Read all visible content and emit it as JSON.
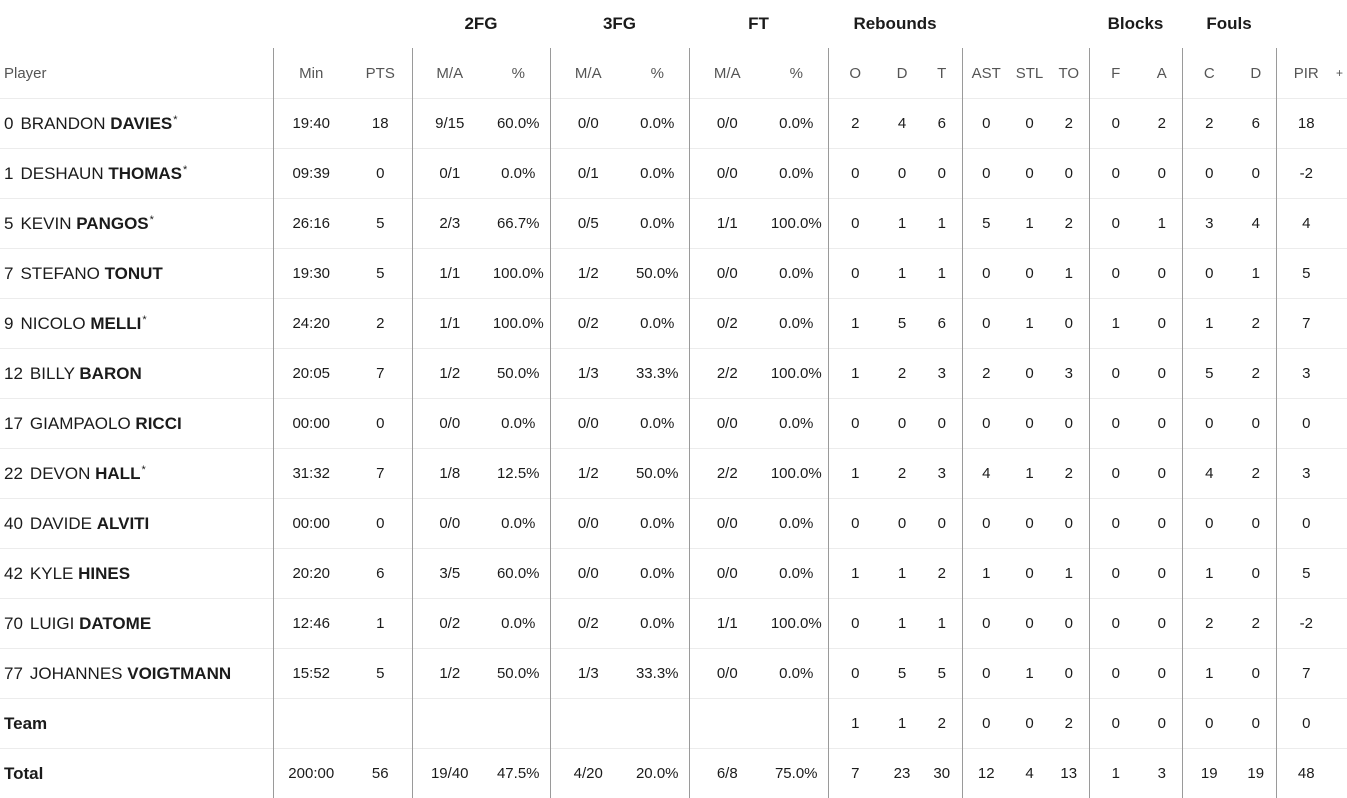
{
  "groups": {
    "fg2": "2FG",
    "fg3": "3FG",
    "ft": "FT",
    "rebounds": "Rebounds",
    "blocks": "Blocks",
    "fouls": "Fouls"
  },
  "columns": {
    "player": "Player",
    "min": "Min",
    "pts": "PTS",
    "fg2_ma": "M/A",
    "fg2_pct": "%",
    "fg3_ma": "M/A",
    "fg3_pct": "%",
    "ft_ma": "M/A",
    "ft_pct": "%",
    "o": "O",
    "d": "D",
    "t": "T",
    "ast": "AST",
    "stl": "STL",
    "to": "TO",
    "blk_f": "F",
    "blk_a": "A",
    "foul_c": "C",
    "foul_d": "D",
    "pir": "PIR",
    "plus": "+"
  },
  "players": [
    {
      "number": "0",
      "first": "BRANDON",
      "last": "DAVIES",
      "starter": true,
      "min": "19:40",
      "pts": "18",
      "fg2_ma": "9/15",
      "fg2_pct": "60.0%",
      "fg3_ma": "0/0",
      "fg3_pct": "0.0%",
      "ft_ma": "0/0",
      "ft_pct": "0.0%",
      "o": "2",
      "d": "4",
      "t": "6",
      "ast": "0",
      "stl": "0",
      "to": "2",
      "blk_f": "0",
      "blk_a": "2",
      "foul_c": "2",
      "foul_d": "6",
      "pir": "18"
    },
    {
      "number": "1",
      "first": "DESHAUN",
      "last": "THOMAS",
      "starter": true,
      "min": "09:39",
      "pts": "0",
      "fg2_ma": "0/1",
      "fg2_pct": "0.0%",
      "fg3_ma": "0/1",
      "fg3_pct": "0.0%",
      "ft_ma": "0/0",
      "ft_pct": "0.0%",
      "o": "0",
      "d": "0",
      "t": "0",
      "ast": "0",
      "stl": "0",
      "to": "0",
      "blk_f": "0",
      "blk_a": "0",
      "foul_c": "0",
      "foul_d": "0",
      "pir": "-2"
    },
    {
      "number": "5",
      "first": "KEVIN",
      "last": "PANGOS",
      "starter": true,
      "min": "26:16",
      "pts": "5",
      "fg2_ma": "2/3",
      "fg2_pct": "66.7%",
      "fg3_ma": "0/5",
      "fg3_pct": "0.0%",
      "ft_ma": "1/1",
      "ft_pct": "100.0%",
      "o": "0",
      "d": "1",
      "t": "1",
      "ast": "5",
      "stl": "1",
      "to": "2",
      "blk_f": "0",
      "blk_a": "1",
      "foul_c": "3",
      "foul_d": "4",
      "pir": "4"
    },
    {
      "number": "7",
      "first": "STEFANO",
      "last": "TONUT",
      "starter": false,
      "min": "19:30",
      "pts": "5",
      "fg2_ma": "1/1",
      "fg2_pct": "100.0%",
      "fg3_ma": "1/2",
      "fg3_pct": "50.0%",
      "ft_ma": "0/0",
      "ft_pct": "0.0%",
      "o": "0",
      "d": "1",
      "t": "1",
      "ast": "0",
      "stl": "0",
      "to": "1",
      "blk_f": "0",
      "blk_a": "0",
      "foul_c": "0",
      "foul_d": "1",
      "pir": "5"
    },
    {
      "number": "9",
      "first": "NICOLO",
      "last": "MELLI",
      "starter": true,
      "min": "24:20",
      "pts": "2",
      "fg2_ma": "1/1",
      "fg2_pct": "100.0%",
      "fg3_ma": "0/2",
      "fg3_pct": "0.0%",
      "ft_ma": "0/2",
      "ft_pct": "0.0%",
      "o": "1",
      "d": "5",
      "t": "6",
      "ast": "0",
      "stl": "1",
      "to": "0",
      "blk_f": "1",
      "blk_a": "0",
      "foul_c": "1",
      "foul_d": "2",
      "pir": "7"
    },
    {
      "number": "12",
      "first": "BILLY",
      "last": "BARON",
      "starter": false,
      "min": "20:05",
      "pts": "7",
      "fg2_ma": "1/2",
      "fg2_pct": "50.0%",
      "fg3_ma": "1/3",
      "fg3_pct": "33.3%",
      "ft_ma": "2/2",
      "ft_pct": "100.0%",
      "o": "1",
      "d": "2",
      "t": "3",
      "ast": "2",
      "stl": "0",
      "to": "3",
      "blk_f": "0",
      "blk_a": "0",
      "foul_c": "5",
      "foul_d": "2",
      "pir": "3"
    },
    {
      "number": "17",
      "first": "GIAMPAOLO",
      "last": "RICCI",
      "starter": false,
      "min": "00:00",
      "pts": "0",
      "fg2_ma": "0/0",
      "fg2_pct": "0.0%",
      "fg3_ma": "0/0",
      "fg3_pct": "0.0%",
      "ft_ma": "0/0",
      "ft_pct": "0.0%",
      "o": "0",
      "d": "0",
      "t": "0",
      "ast": "0",
      "stl": "0",
      "to": "0",
      "blk_f": "0",
      "blk_a": "0",
      "foul_c": "0",
      "foul_d": "0",
      "pir": "0"
    },
    {
      "number": "22",
      "first": "DEVON",
      "last": "HALL",
      "starter": true,
      "min": "31:32",
      "pts": "7",
      "fg2_ma": "1/8",
      "fg2_pct": "12.5%",
      "fg3_ma": "1/2",
      "fg3_pct": "50.0%",
      "ft_ma": "2/2",
      "ft_pct": "100.0%",
      "o": "1",
      "d": "2",
      "t": "3",
      "ast": "4",
      "stl": "1",
      "to": "2",
      "blk_f": "0",
      "blk_a": "0",
      "foul_c": "4",
      "foul_d": "2",
      "pir": "3"
    },
    {
      "number": "40",
      "first": "DAVIDE",
      "last": "ALVITI",
      "starter": false,
      "min": "00:00",
      "pts": "0",
      "fg2_ma": "0/0",
      "fg2_pct": "0.0%",
      "fg3_ma": "0/0",
      "fg3_pct": "0.0%",
      "ft_ma": "0/0",
      "ft_pct": "0.0%",
      "o": "0",
      "d": "0",
      "t": "0",
      "ast": "0",
      "stl": "0",
      "to": "0",
      "blk_f": "0",
      "blk_a": "0",
      "foul_c": "0",
      "foul_d": "0",
      "pir": "0"
    },
    {
      "number": "42",
      "first": "KYLE",
      "last": "HINES",
      "starter": false,
      "min": "20:20",
      "pts": "6",
      "fg2_ma": "3/5",
      "fg2_pct": "60.0%",
      "fg3_ma": "0/0",
      "fg3_pct": "0.0%",
      "ft_ma": "0/0",
      "ft_pct": "0.0%",
      "o": "1",
      "d": "1",
      "t": "2",
      "ast": "1",
      "stl": "0",
      "to": "1",
      "blk_f": "0",
      "blk_a": "0",
      "foul_c": "1",
      "foul_d": "0",
      "pir": "5"
    },
    {
      "number": "70",
      "first": "LUIGI",
      "last": "DATOME",
      "starter": false,
      "min": "12:46",
      "pts": "1",
      "fg2_ma": "0/2",
      "fg2_pct": "0.0%",
      "fg3_ma": "0/2",
      "fg3_pct": "0.0%",
      "ft_ma": "1/1",
      "ft_pct": "100.0%",
      "o": "0",
      "d": "1",
      "t": "1",
      "ast": "0",
      "stl": "0",
      "to": "0",
      "blk_f": "0",
      "blk_a": "0",
      "foul_c": "2",
      "foul_d": "2",
      "pir": "-2"
    },
    {
      "number": "77",
      "first": "JOHANNES",
      "last": "VOIGTMANN",
      "starter": false,
      "min": "15:52",
      "pts": "5",
      "fg2_ma": "1/2",
      "fg2_pct": "50.0%",
      "fg3_ma": "1/3",
      "fg3_pct": "33.3%",
      "ft_ma": "0/0",
      "ft_pct": "0.0%",
      "o": "0",
      "d": "5",
      "t": "5",
      "ast": "0",
      "stl": "1",
      "to": "0",
      "blk_f": "0",
      "blk_a": "0",
      "foul_c": "1",
      "foul_d": "0",
      "pir": "7"
    }
  ],
  "team": {
    "label": "Team",
    "min": "",
    "pts": "",
    "fg2_ma": "",
    "fg2_pct": "",
    "fg3_ma": "",
    "fg3_pct": "",
    "ft_ma": "",
    "ft_pct": "",
    "o": "1",
    "d": "1",
    "t": "2",
    "ast": "0",
    "stl": "0",
    "to": "2",
    "blk_f": "0",
    "blk_a": "0",
    "foul_c": "0",
    "foul_d": "0",
    "pir": "0"
  },
  "total": {
    "label": "Total",
    "min": "200:00",
    "pts": "56",
    "fg2_ma": "19/40",
    "fg2_pct": "47.5%",
    "fg3_ma": "4/20",
    "fg3_pct": "20.0%",
    "ft_ma": "6/8",
    "ft_pct": "75.0%",
    "o": "7",
    "d": "23",
    "t": "30",
    "ast": "12",
    "stl": "4",
    "to": "13",
    "blk_f": "1",
    "blk_a": "3",
    "foul_c": "19",
    "foul_d": "19",
    "pir": "48"
  }
}
